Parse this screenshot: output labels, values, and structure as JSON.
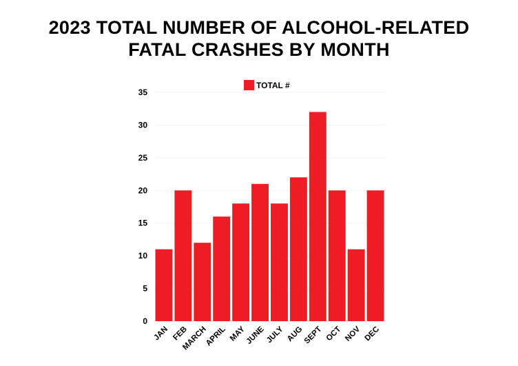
{
  "chart_data": {
    "type": "bar",
    "title_line1": "2023 TOTAL NUMBER OF ALCOHOL-RELATED",
    "title_line2": "FATAL CRASHES BY MONTH",
    "categories": [
      "JAN",
      "FEB",
      "MARCH",
      "APRIL",
      "MAY",
      "JUNE",
      "JULY",
      "AUG",
      "SEPT",
      "OCT",
      "NOV",
      "DEC"
    ],
    "series": [
      {
        "name": "TOTAL #",
        "values": [
          11,
          20,
          12,
          16,
          18,
          21,
          18,
          22,
          32,
          20,
          11,
          20
        ],
        "color": "#ee1c25"
      }
    ],
    "xlabel": "",
    "ylabel": "",
    "ylim": [
      0,
      35
    ],
    "yticks": [
      0,
      5,
      10,
      15,
      20,
      25,
      30,
      35
    ],
    "grid": true,
    "legend": "top"
  }
}
